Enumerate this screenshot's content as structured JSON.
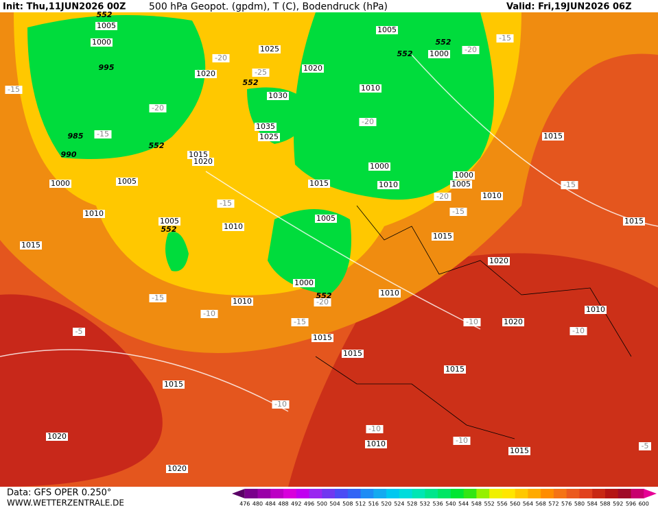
{
  "header": {
    "init": "Init: Thu,11JUN2026 00Z",
    "title": "500 hPa Geopot. (gpdm), T (C), Bodendruck (hPa)",
    "valid": "Valid: Fri,19JUN2026 06Z"
  },
  "footer": {
    "data": "Data: GFS OPER 0.250°",
    "site": "WWW.WETTERZENTRALE.DE"
  },
  "legend": {
    "labels": [
      476,
      480,
      484,
      488,
      492,
      496,
      500,
      504,
      508,
      512,
      516,
      520,
      524,
      528,
      532,
      536,
      540,
      544,
      548,
      552,
      556,
      560,
      564,
      568,
      572,
      576,
      580,
      584,
      588,
      592,
      596,
      600
    ],
    "colors": [
      "#5a0066",
      "#7a008c",
      "#9a00a8",
      "#bc00c4",
      "#d800dc",
      "#c000f0",
      "#9a28f0",
      "#7038f0",
      "#4b4bf5",
      "#3264f5",
      "#1e8cf5",
      "#14aaf0",
      "#00c8f0",
      "#00dcdc",
      "#00e6b4",
      "#00e68c",
      "#00e664",
      "#00e632",
      "#32e614",
      "#96f000",
      "#f0f000",
      "#ffe600",
      "#ffc800",
      "#ffaa00",
      "#ff8c00",
      "#f57314",
      "#eb5a1e",
      "#e1411e",
      "#c82814",
      "#b41414",
      "#a00a28",
      "#c8006e",
      "#e60096"
    ]
  },
  "map_labels": [
    "552",
    "1005",
    "1000",
    "995",
    "985",
    "-15",
    "990",
    "1000",
    "1005",
    "552",
    "-20",
    "1020",
    "-20",
    "-25",
    "552",
    "1030",
    "1035",
    "1025",
    "1015",
    "1020",
    "-15",
    "1010",
    "1005",
    "552",
    "-15",
    "-10",
    "-5",
    "1015",
    "1010",
    "-15",
    "1025",
    "1020",
    "1005",
    "552",
    "1010",
    "-20",
    "1000",
    "1015",
    "1010",
    "1005",
    "1000",
    "552",
    "-20",
    "1010",
    "-15",
    "1015",
    "1015",
    "1010",
    "1015",
    "552",
    "1000",
    "-20",
    "-15",
    "1015",
    "-15",
    "1010",
    "1000",
    "1005",
    "-20",
    "-15",
    "1015",
    "1020",
    "1020",
    "-10",
    "1010",
    "-10",
    "1015",
    "1015",
    "-10",
    "-10",
    "-10",
    "1010",
    "1015",
    "1020",
    "1020",
    "-5"
  ]
}
